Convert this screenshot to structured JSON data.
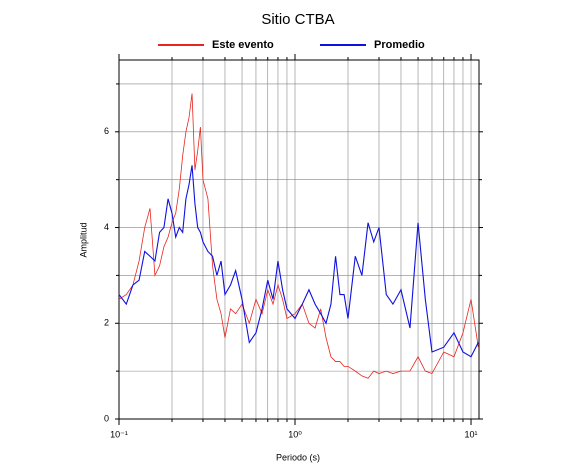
{
  "chart_data": {
    "type": "line",
    "title": "Sitio CTBA",
    "x_label": "Periodo (s)",
    "y_label": "Amplitud",
    "log_x": true,
    "grid": true,
    "xlim": [
      0.1,
      11.1
    ],
    "ylim": [
      0,
      7.5
    ],
    "xticks": [
      {
        "value": 0.1,
        "label": "10⁻¹"
      },
      {
        "value": 1,
        "label": "10⁰"
      },
      {
        "value": 10,
        "label": "10¹"
      }
    ],
    "x_minor_ticks": [
      0.2,
      0.3,
      0.4,
      0.5,
      0.6,
      0.7,
      0.8,
      0.9,
      2,
      3,
      4,
      5,
      6,
      7,
      8,
      9
    ],
    "yticks": [
      0,
      2,
      4,
      6
    ],
    "y_minor_ticks": [
      1,
      3,
      5,
      7
    ],
    "x": [
      0.1,
      0.11,
      0.12,
      0.13,
      0.14,
      0.15,
      0.16,
      0.17,
      0.18,
      0.19,
      0.2,
      0.21,
      0.22,
      0.23,
      0.24,
      0.25,
      0.26,
      0.27,
      0.28,
      0.29,
      0.3,
      0.32,
      0.34,
      0.36,
      0.38,
      0.4,
      0.43,
      0.46,
      0.5,
      0.55,
      0.6,
      0.65,
      0.7,
      0.75,
      0.8,
      0.85,
      0.9,
      1.0,
      1.1,
      1.2,
      1.3,
      1.4,
      1.5,
      1.6,
      1.7,
      1.8,
      1.9,
      2.0,
      2.2,
      2.4,
      2.6,
      2.8,
      3.0,
      3.3,
      3.6,
      4.0,
      4.5,
      5.0,
      5.5,
      6.0,
      7.0,
      8.0,
      9.0,
      10.0,
      11.0
    ],
    "series": [
      {
        "name": "Este evento",
        "color": "#e8261f",
        "values": [
          2.5,
          2.6,
          2.8,
          3.3,
          4.0,
          4.4,
          3.0,
          3.2,
          3.6,
          3.8,
          4.1,
          4.3,
          4.8,
          5.5,
          6.0,
          6.3,
          6.8,
          5.2,
          5.6,
          6.1,
          5.0,
          4.6,
          3.2,
          2.5,
          2.2,
          1.7,
          2.3,
          2.2,
          2.4,
          2.0,
          2.5,
          2.2,
          2.7,
          2.4,
          2.8,
          2.5,
          2.1,
          2.2,
          2.4,
          2.0,
          1.9,
          2.3,
          1.7,
          1.3,
          1.2,
          1.2,
          1.1,
          1.1,
          1.0,
          0.9,
          0.85,
          1.0,
          0.95,
          1.0,
          0.95,
          1.0,
          1.0,
          1.3,
          1.0,
          0.95,
          1.4,
          1.3,
          1.8,
          2.5,
          1.5
        ]
      },
      {
        "name": "Promedio",
        "color": "#1010e0",
        "values": [
          2.6,
          2.4,
          2.8,
          2.9,
          3.5,
          3.4,
          3.3,
          3.9,
          4.0,
          4.6,
          4.3,
          3.8,
          4.0,
          3.9,
          4.6,
          4.9,
          5.3,
          4.5,
          4.0,
          3.9,
          3.7,
          3.5,
          3.4,
          3.0,
          3.3,
          2.6,
          2.8,
          3.1,
          2.5,
          1.6,
          1.8,
          2.3,
          2.9,
          2.5,
          3.3,
          2.7,
          2.3,
          2.1,
          2.4,
          2.7,
          2.4,
          2.2,
          2.0,
          2.4,
          3.4,
          2.6,
          2.6,
          2.1,
          3.4,
          3.0,
          4.1,
          3.7,
          4.0,
          2.6,
          2.4,
          2.7,
          1.9,
          4.1,
          2.5,
          1.4,
          1.5,
          1.8,
          1.4,
          1.3,
          1.6
        ]
      }
    ]
  }
}
